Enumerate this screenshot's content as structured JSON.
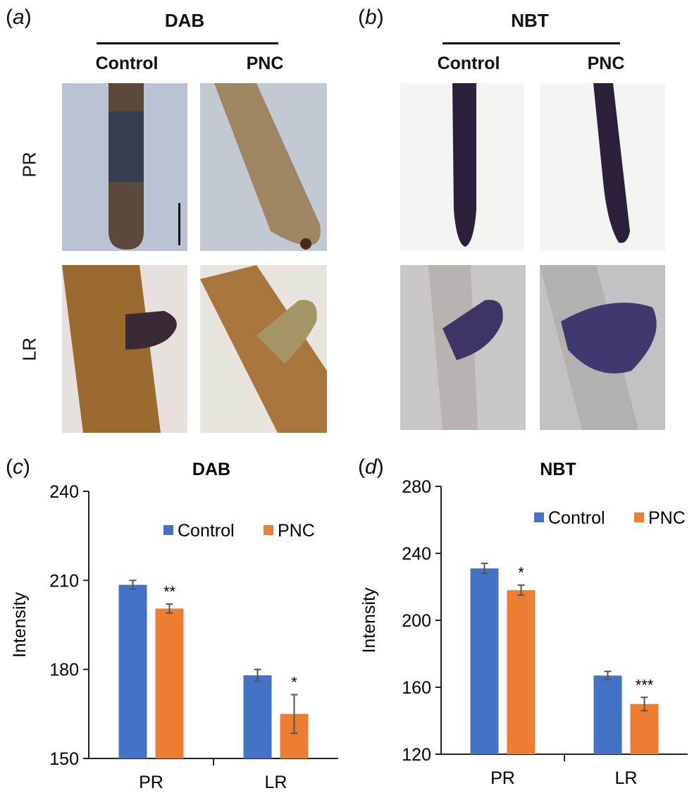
{
  "panels": {
    "a": {
      "letter": "a",
      "stain": "DAB",
      "columns": [
        "Control",
        "PNC"
      ],
      "rows": [
        "PR",
        "LR"
      ]
    },
    "b": {
      "letter": "b",
      "stain": "NBT",
      "columns": [
        "Control",
        "PNC"
      ],
      "rows": []
    },
    "c": {
      "letter": "c"
    },
    "d": {
      "letter": "d"
    }
  },
  "colors": {
    "control": "#4472C4",
    "pnc": "#ED7D31",
    "dab_stain": "#8a5a2b",
    "nbt_stain": "#3b2a55"
  },
  "chart_data": [
    {
      "type": "bar",
      "title": "DAB",
      "ylabel": "Intensity",
      "xlabel": "",
      "categories": [
        "PR",
        "LR"
      ],
      "ylim": [
        150,
        240
      ],
      "yticks": [
        150,
        180,
        210,
        240
      ],
      "series": [
        {
          "name": "Control",
          "values": [
            208.5,
            178
          ],
          "errors": [
            1.5,
            2
          ]
        },
        {
          "name": "PNC",
          "values": [
            200.5,
            165
          ],
          "errors": [
            1.5,
            6.5
          ]
        }
      ],
      "significance": [
        [
          "",
          "**"
        ],
        [
          "",
          "*"
        ]
      ],
      "legend": "top-right",
      "grid": false
    },
    {
      "type": "bar",
      "title": "NBT",
      "ylabel": "Intensity",
      "xlabel": "",
      "categories": [
        "PR",
        "LR"
      ],
      "ylim": [
        120,
        280
      ],
      "yticks": [
        120,
        160,
        200,
        240,
        280
      ],
      "series": [
        {
          "name": "Control",
          "values": [
            231,
            167
          ],
          "errors": [
            3,
            2.5
          ]
        },
        {
          "name": "PNC",
          "values": [
            218,
            150
          ],
          "errors": [
            3,
            4
          ]
        }
      ],
      "significance": [
        [
          "",
          "*"
        ],
        [
          "",
          "***"
        ]
      ],
      "legend": "top-right",
      "grid": false
    }
  ]
}
